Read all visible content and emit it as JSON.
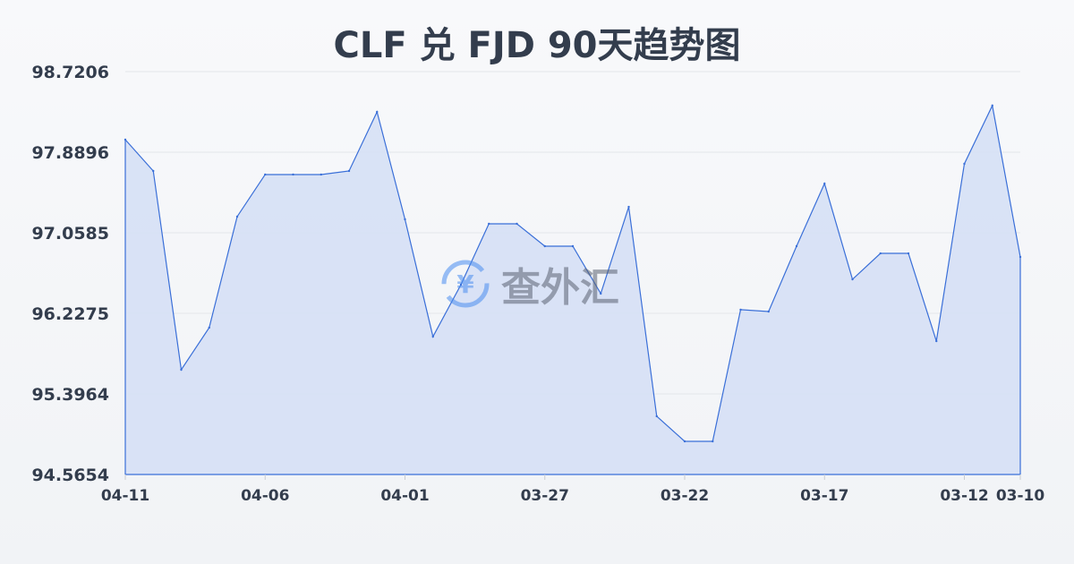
{
  "chart_data": {
    "type": "area",
    "title": "CLF 兑 FJD 90天趋势图",
    "xlabel": "",
    "ylabel": "",
    "ylim": [
      94.5654,
      98.7206
    ],
    "yticks": [
      "98.7206",
      "97.8896",
      "97.0585",
      "96.2275",
      "95.3964",
      "94.5654"
    ],
    "xticks": [
      "04-11",
      "04-06",
      "04-01",
      "03-27",
      "03-22",
      "03-17",
      "03-12",
      "03-10"
    ],
    "grid": true,
    "line_color": "#3a6fd8",
    "fill_color": "#d6e0f5",
    "x": [
      "04-11",
      "04-10",
      "04-09",
      "04-08",
      "04-07",
      "04-06",
      "04-05",
      "04-04",
      "04-03",
      "04-02",
      "04-01",
      "03-31",
      "03-30",
      "03-29",
      "03-28",
      "03-27",
      "03-26",
      "03-25",
      "03-24",
      "03-23",
      "03-22",
      "03-21",
      "03-20",
      "03-19",
      "03-18",
      "03-17",
      "03-16",
      "03-15",
      "03-14",
      "03-13",
      "03-12",
      "03-11",
      "03-10"
    ],
    "values": [
      98.019,
      97.696,
      95.646,
      96.08,
      97.225,
      97.659,
      97.659,
      97.659,
      97.696,
      98.305,
      97.197,
      95.987,
      96.523,
      97.151,
      97.151,
      96.92,
      96.92,
      96.431,
      97.326,
      95.166,
      94.907,
      94.907,
      96.265,
      96.246,
      96.92,
      97.566,
      96.578,
      96.846,
      96.846,
      95.941,
      97.77,
      98.37,
      96.809
    ]
  },
  "watermark": {
    "text": "查外汇",
    "icon": "yen-exchange-icon"
  }
}
